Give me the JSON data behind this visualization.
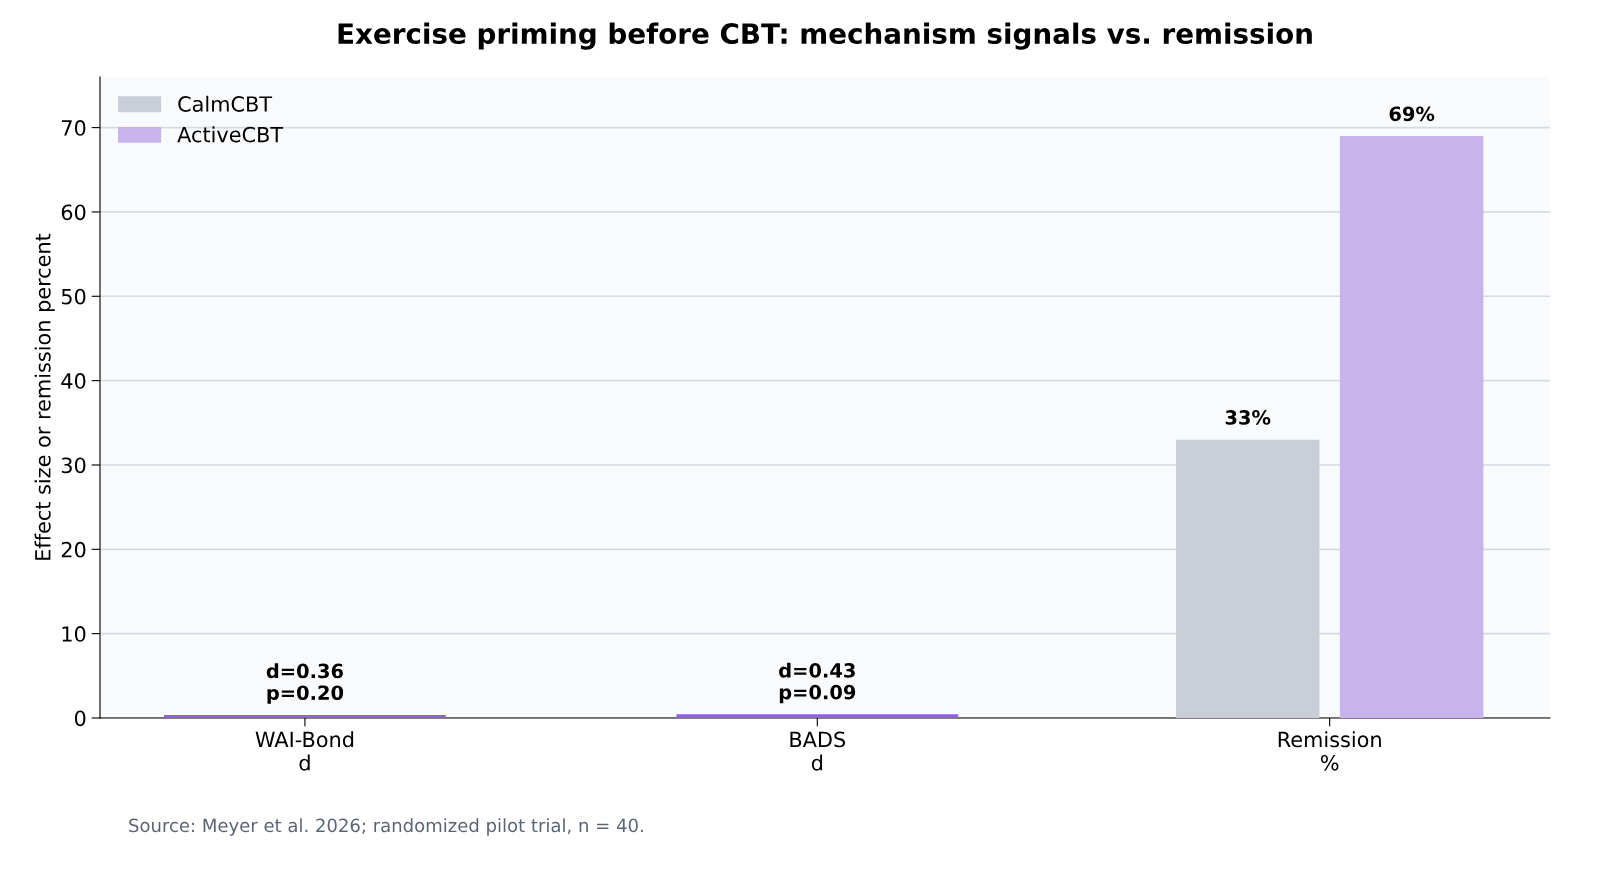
{
  "chart_data": {
    "type": "bar",
    "title": "Exercise priming before CBT: mechanism signals vs. remission",
    "ylabel": "Effect size or remission percent",
    "categories": [
      "WAI-Bond\nd",
      "BADS\nd",
      "Remission\n%"
    ],
    "series": [
      {
        "name": "CalmCBT",
        "color": "#c9ced8",
        "values": [
          null,
          null,
          33
        ],
        "value_labels": [
          null,
          null,
          "33%"
        ]
      },
      {
        "name": "ActiveCBT",
        "color": "#c9b3ec",
        "values": [
          null,
          null,
          69
        ],
        "value_labels": [
          null,
          null,
          "69%"
        ]
      },
      {
        "color": "#8f62d8",
        "values": [
          0.36,
          0.43,
          null
        ],
        "value_labels": [
          "d=0.36\np=0.20",
          "d=0.43\np=0.09",
          null
        ]
      }
    ],
    "ylim": [
      0,
      76
    ],
    "yticks": [
      0,
      10,
      20,
      30,
      40,
      50,
      60,
      70
    ],
    "grid": "y",
    "legend": "top left",
    "annotations": [
      "Source: Meyer et al. 2026; randomized pilot trial, n = 40."
    ]
  }
}
